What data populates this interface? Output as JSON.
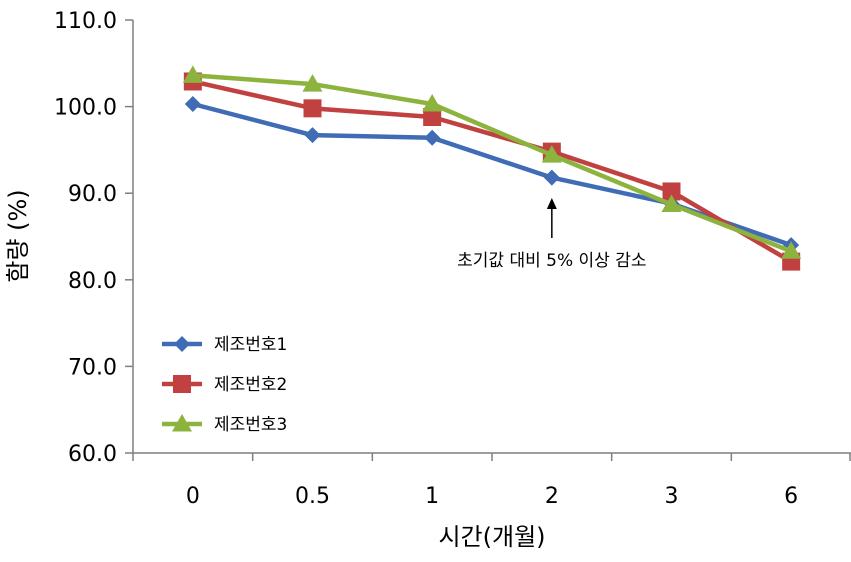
{
  "chart_data": {
    "type": "line",
    "categories": [
      "0",
      "0.5",
      "1",
      "2",
      "3",
      "6"
    ],
    "series": [
      {
        "name": "제조번호1",
        "values": [
          100.3,
          96.7,
          96.4,
          91.8,
          88.8,
          84.0
        ],
        "color": "#3f6cb5",
        "marker": "diamond"
      },
      {
        "name": "제조번호2",
        "values": [
          102.9,
          99.8,
          98.8,
          94.8,
          90.2,
          82.1
        ],
        "color": "#c0413f",
        "marker": "square"
      },
      {
        "name": "제조번호3",
        "values": [
          103.6,
          102.6,
          100.3,
          94.4,
          88.7,
          83.3
        ],
        "color": "#8db33f",
        "marker": "triangle"
      }
    ],
    "y_ticks": [
      "110.0",
      "100.0",
      "90.0",
      "80.0",
      "70.0",
      "60.0"
    ],
    "ylim": [
      60,
      110
    ],
    "xlabel": "시간(개월)",
    "ylabel": "함량 (%)",
    "annotation": {
      "text": "초기값 대비 5% 이상 감소",
      "category": "2"
    },
    "legend_position": "bottom-left",
    "grid": false
  }
}
